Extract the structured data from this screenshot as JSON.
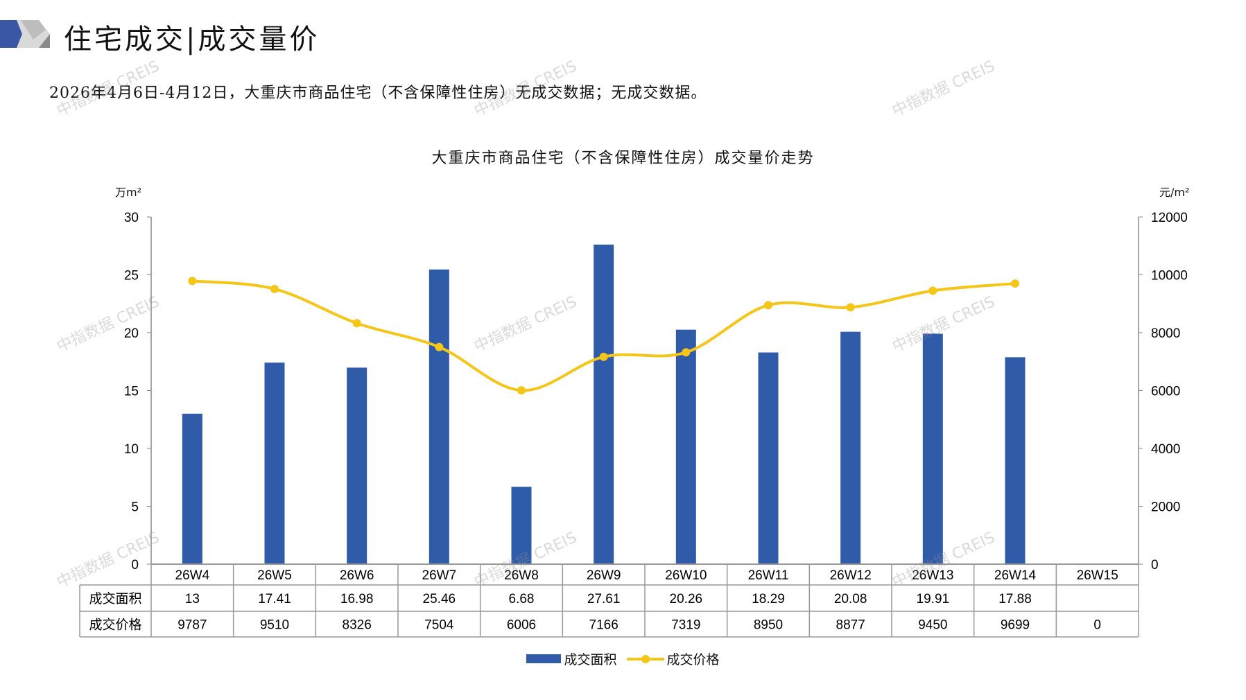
{
  "header": {
    "title": "住宅成交|成交量价",
    "subtitle": "2026年4月6日-4月12日，大重庆市商品住宅（不含保障性住房）无成交数据；无成交数据。"
  },
  "watermark": "中指数据 CREIS",
  "colors": {
    "bar": "#2f5ba8",
    "line": "#f5c518",
    "logo_blue": "#3a56a5",
    "logo_gray": "#9a9a9a"
  },
  "chart_data": {
    "type": "bar+line",
    "title": "大重庆市商品住宅（不含保障性住房）成交量价走势",
    "y_left_unit": "万m²",
    "y_right_unit": "元/m²",
    "y_left_range": [
      0,
      30
    ],
    "y_right_range": [
      0,
      12000
    ],
    "y_left_ticks": [
      "0",
      "5",
      "10",
      "15",
      "20",
      "25",
      "30"
    ],
    "y_right_ticks": [
      "0",
      "2000",
      "4000",
      "6000",
      "8000",
      "10000",
      "12000"
    ],
    "categories": [
      "26W4",
      "26W5",
      "26W6",
      "26W7",
      "26W8",
      "26W9",
      "26W10",
      "26W11",
      "26W12",
      "26W13",
      "26W14",
      "26W15"
    ],
    "series": [
      {
        "name": "成交面积",
        "type": "bar",
        "axis": "left",
        "values": [
          13,
          17.41,
          16.98,
          25.46,
          6.68,
          27.61,
          20.26,
          18.29,
          20.08,
          19.91,
          17.88,
          null
        ],
        "labels": [
          "13",
          "17.41",
          "16.98",
          "25.46",
          "6.68",
          "27.61",
          "20.26",
          "18.29",
          "20.08",
          "19.91",
          "17.88",
          ""
        ]
      },
      {
        "name": "成交价格",
        "type": "line",
        "axis": "right",
        "values": [
          9787,
          9510,
          8326,
          7504,
          6006,
          7166,
          7319,
          8950,
          8877,
          9450,
          9699,
          0
        ],
        "labels": [
          "9787",
          "9510",
          "8326",
          "7504",
          "6006",
          "7166",
          "7319",
          "8950",
          "8877",
          "9450",
          "9699",
          "0"
        ]
      }
    ],
    "legend": "bottom"
  }
}
